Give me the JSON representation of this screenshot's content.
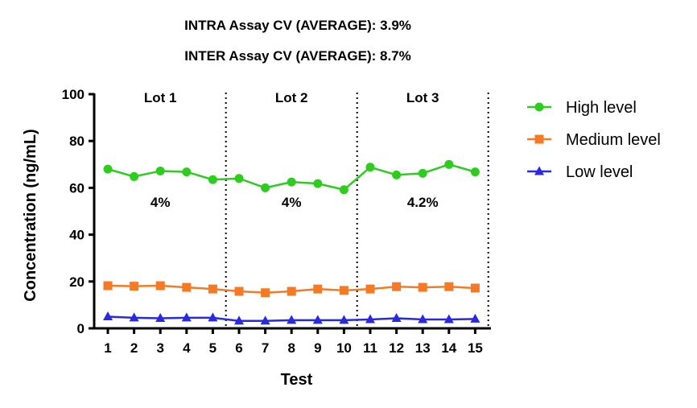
{
  "header": {
    "intra": "INTRA Assay CV (AVERAGE): 3.9%",
    "inter": "INTER Assay CV (AVERAGE): 8.7%"
  },
  "chart_data": {
    "type": "line",
    "title": "",
    "xlabel": "Test",
    "ylabel": "Concentration (ng/mL)",
    "categories": [
      "1",
      "2",
      "3",
      "4",
      "5",
      "6",
      "7",
      "8",
      "9",
      "10",
      "11",
      "12",
      "13",
      "14",
      "15"
    ],
    "ylim": [
      0,
      100
    ],
    "yticks": [
      0,
      20,
      40,
      60,
      80,
      100
    ],
    "grid": false,
    "legend_position": "right",
    "series": [
      {
        "name": "High level",
        "color": "#2ecc1f",
        "marker": "circle",
        "values": [
          68,
          64.8,
          67.2,
          66.8,
          63.5,
          64,
          60,
          62.5,
          61.8,
          59.2,
          68.8,
          65.5,
          66.2,
          70,
          66.8
        ]
      },
      {
        "name": "Medium level",
        "color": "#f47a25",
        "marker": "square",
        "values": [
          18.2,
          18,
          18.2,
          17.5,
          16.8,
          15.8,
          15.2,
          15.8,
          16.8,
          16.2,
          16.8,
          17.8,
          17.5,
          17.8,
          17.2
        ]
      },
      {
        "name": "Low level",
        "color": "#2929e0",
        "marker": "triangle",
        "values": [
          5,
          4.5,
          4.3,
          4.5,
          4.5,
          3.2,
          3.2,
          3.5,
          3.5,
          3.5,
          3.8,
          4.3,
          3.8,
          3.8,
          4
        ]
      }
    ],
    "lots": [
      {
        "label": "Lot 1",
        "cv": "4%",
        "start": 1,
        "end": 5
      },
      {
        "label": "Lot 2",
        "cv": "4%",
        "start": 6,
        "end": 10
      },
      {
        "label": "Lot 3",
        "cv": "4.2%",
        "start": 11,
        "end": 15
      }
    ],
    "separators_after": [
      5,
      10,
      15
    ]
  }
}
